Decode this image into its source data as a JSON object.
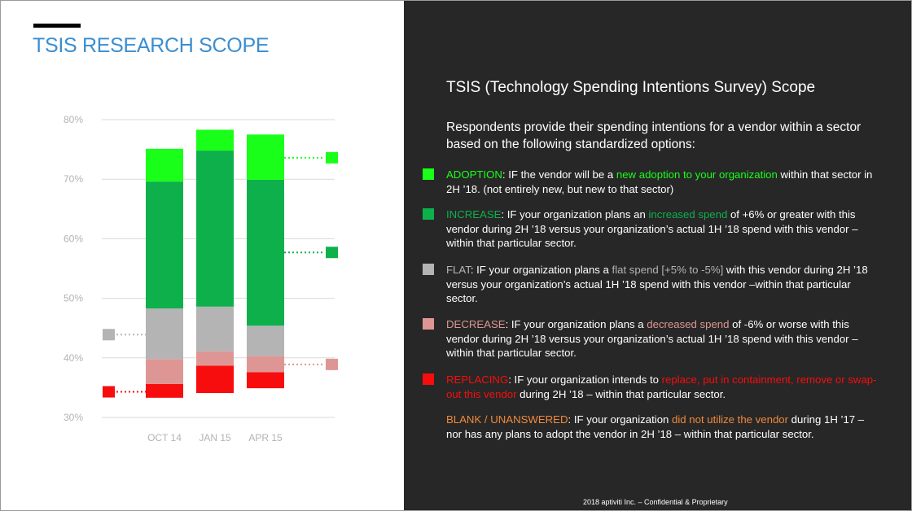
{
  "slide_title": "TSIS RESEARCH SCOPE",
  "right_title": "TSIS (Technology Spending Intentions Survey) Scope",
  "intro": "Respondents provide their spending intentions for a vendor within a sector based on the following standardized options:",
  "colors": {
    "adoption": "#19ff19",
    "increase": "#0eb04c",
    "flat": "#b4b4b4",
    "decrease": "#de9694",
    "replacing": "#f70d0d",
    "blank": "#f08a3c"
  },
  "definitions": [
    {
      "key": "adoption",
      "label": "ADOPTION",
      "p1": ": IF the vendor will be a ",
      "hl": "new adoption to your organization",
      "p2": " within that sector in 2H ’18. (not entirely new, but new to that sector)"
    },
    {
      "key": "increase",
      "label": "INCREASE",
      "p1": ": IF your organization plans an ",
      "hl": "increased spend",
      "p2": " of +6% or greater with this vendor  during  2H ’18 versus your organization’s actual 1H ’18 spend with this vendor – within that particular sector."
    },
    {
      "key": "flat",
      "label": "FLAT",
      "p1": ": IF your organization plans a ",
      "hl": "flat spend [+5% to -5%]",
      "p2": " with this vendor during 2H ’18 versus your organization’s actual 1H ’18 spend with this vendor –within that particular sector."
    },
    {
      "key": "decrease",
      "label": "DECREASE",
      "p1": ": IF your organization plans a ",
      "hl": "decreased spend",
      "p2": " of -6% or worse with this vendor during 2H ’18 versus your organization’s actual 1H ’18 spend with this vendor – within that particular sector."
    },
    {
      "key": "replacing",
      "label": "REPLACING",
      "p1": ": IF your organization intends to ",
      "hl": "replace, put in containment, remove or swap-out this vendor",
      "p2": " during 2H ’18 – within that particular sector."
    },
    {
      "key": "blank",
      "label": "BLANK / UNANSWERED",
      "p1": ": IF your organization ",
      "hl": "did not utilize the vendor",
      "p2": " during 1H ’17 – nor has any plans to adopt the vendor in 2H ’18 – within that particular sector."
    }
  ],
  "footer": "2018 aptiviti Inc. – Confidential & Proprietary",
  "chart_data": {
    "type": "bar",
    "stacked": "floating",
    "ylim": [
      30,
      80
    ],
    "yticks": [
      "30%",
      "40%",
      "50%",
      "60%",
      "70%",
      "80%"
    ],
    "ytick_values": [
      30,
      40,
      50,
      60,
      70,
      80
    ],
    "grid": true,
    "categories": [
      "OCT 14",
      "JAN 15",
      "APR 15"
    ],
    "series": [
      {
        "key": "replacing",
        "values": [
          [
            33.3,
            35.6
          ],
          [
            34.1,
            38.7
          ],
          [
            34.9,
            37.6
          ]
        ]
      },
      {
        "key": "decrease",
        "values": [
          [
            35.6,
            39.8
          ],
          [
            38.7,
            41.1
          ],
          [
            37.6,
            40.3
          ]
        ]
      },
      {
        "key": "flat",
        "values": [
          [
            39.8,
            48.3
          ],
          [
            41.1,
            48.6
          ],
          [
            40.3,
            45.4
          ]
        ]
      },
      {
        "key": "increase",
        "values": [
          [
            48.3,
            69.6
          ],
          [
            48.6,
            74.8
          ],
          [
            45.4,
            69.9
          ]
        ]
      },
      {
        "key": "adoption",
        "values": [
          [
            69.6,
            75.1
          ],
          [
            74.8,
            78.3
          ],
          [
            69.9,
            77.5
          ]
        ]
      }
    ],
    "markers": [
      {
        "key": "adoption",
        "side": "right",
        "value": 73.6
      },
      {
        "key": "increase",
        "side": "right",
        "value": 57.7
      },
      {
        "key": "flat",
        "side": "left",
        "value": 43.9
      },
      {
        "key": "decrease",
        "side": "right",
        "value": 38.9
      },
      {
        "key": "replacing",
        "side": "left",
        "value": 34.3
      }
    ]
  }
}
